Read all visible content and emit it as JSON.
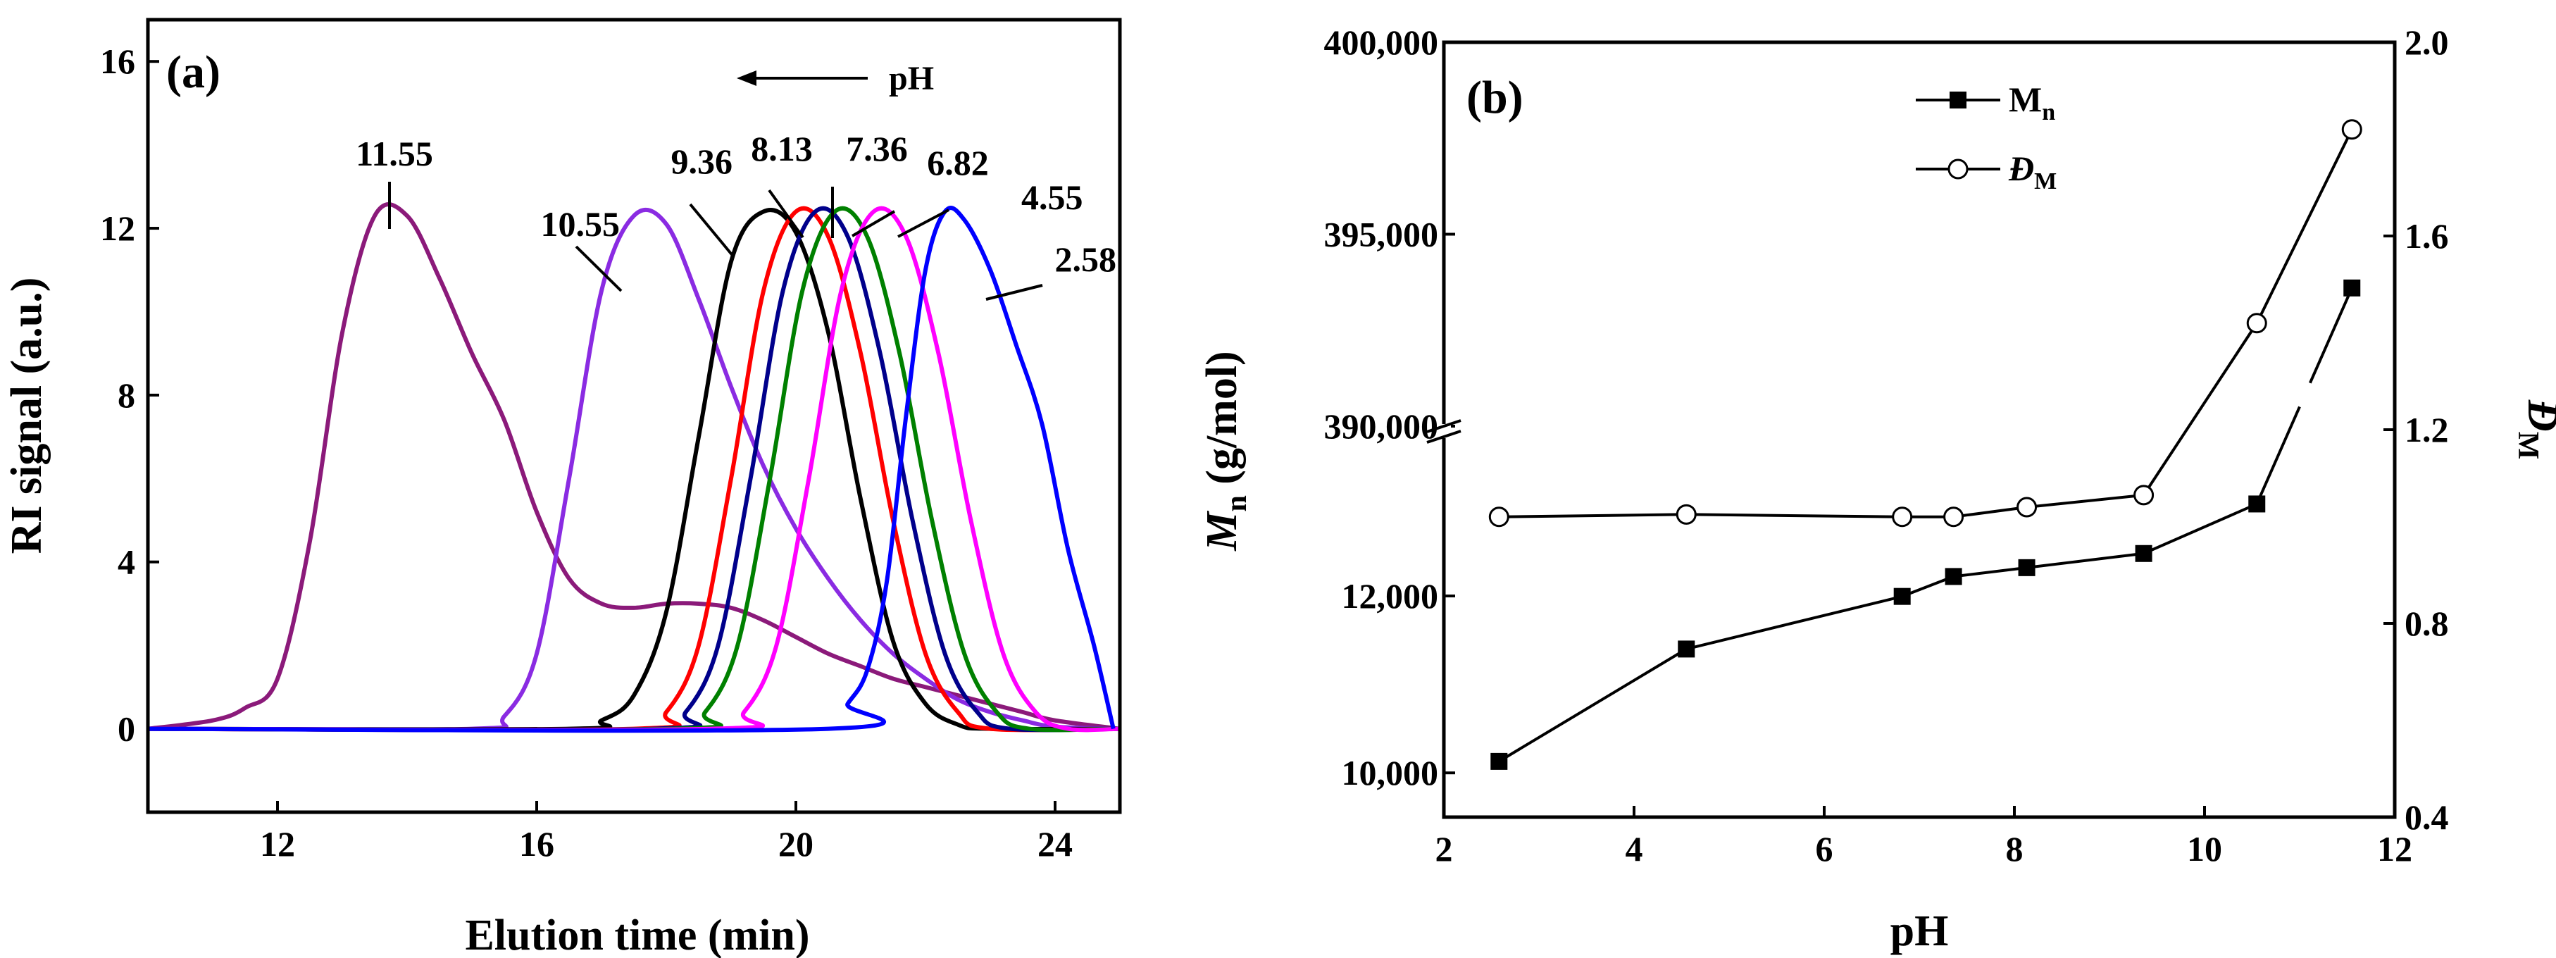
{
  "chart_data": [
    {
      "panel_label": "(a)",
      "type": "line",
      "title": "",
      "xlabel": "Elution time (min)",
      "ylabel": "RI signal (a.u.)",
      "xlim": [
        10,
        25
      ],
      "ylim": [
        -2,
        17
      ],
      "xticks": [
        12,
        16,
        20,
        24
      ],
      "yticks": [
        0,
        4,
        8,
        12,
        16
      ],
      "arrow_label": "pH",
      "series": [
        {
          "name": "11.55",
          "color": "#8b1a7a",
          "x": [
            10,
            11,
            11.5,
            12,
            12.5,
            13,
            13.5,
            14,
            14.5,
            15,
            15.5,
            16,
            16.5,
            17,
            17.5,
            18,
            18.5,
            19,
            19.5,
            20,
            20.5,
            21,
            21.5,
            22,
            22.5,
            23,
            23.5,
            24,
            25
          ],
          "y": [
            0,
            0.2,
            0.5,
            1.2,
            4.5,
            9.5,
            12.3,
            12.3,
            10.8,
            9.0,
            7.4,
            5.2,
            3.6,
            3.0,
            2.9,
            3.0,
            3.0,
            2.9,
            2.6,
            2.2,
            1.8,
            1.5,
            1.2,
            1.0,
            0.8,
            0.6,
            0.4,
            0.2,
            0
          ]
        },
        {
          "name": "10.55",
          "color": "#8a2be2",
          "x": [
            10,
            15,
            15.5,
            16,
            16.5,
            17,
            17.5,
            18,
            18.5,
            19,
            19.5,
            20,
            20.5,
            21,
            21.5,
            22,
            22.5,
            23,
            23.5,
            24,
            25
          ],
          "y": [
            0,
            0,
            0.3,
            1.8,
            6.0,
            10.5,
            12.3,
            12.1,
            10.3,
            8.2,
            6.3,
            4.8,
            3.6,
            2.6,
            1.8,
            1.2,
            0.7,
            0.4,
            0.2,
            0.05,
            0
          ]
        },
        {
          "name": "9.36",
          "color": "#000000",
          "x": [
            10,
            16.5,
            17,
            17.5,
            18,
            18.5,
            19,
            19.5,
            20,
            20.5,
            21,
            21.5,
            22,
            22.5,
            23,
            25
          ],
          "y": [
            0,
            0,
            0.2,
            0.8,
            2.8,
            7.0,
            11.2,
            12.4,
            11.9,
            9.5,
            5.5,
            2.1,
            0.6,
            0.1,
            0,
            0
          ]
        },
        {
          "name": "8.13",
          "color": "#ff0000",
          "x": [
            10,
            17.5,
            18,
            18.5,
            19,
            19.5,
            20,
            20.5,
            21,
            21.5,
            22,
            22.5,
            23,
            25
          ],
          "y": [
            0,
            0,
            0.4,
            2.0,
            6.0,
            10.5,
            12.4,
            11.8,
            9.0,
            5.0,
            1.8,
            0.4,
            0,
            0
          ]
        },
        {
          "name": "7.36",
          "color": "#00008b",
          "x": [
            10,
            17.8,
            18.3,
            18.8,
            19.3,
            19.8,
            20.3,
            20.8,
            21.3,
            21.8,
            22.3,
            22.8,
            23.3,
            25
          ],
          "y": [
            0,
            0,
            0.4,
            2.0,
            6.0,
            10.5,
            12.4,
            11.8,
            9.0,
            5.0,
            1.8,
            0.4,
            0,
            0
          ]
        },
        {
          "name": "6.82",
          "color": "#008000",
          "x": [
            10,
            18.1,
            18.6,
            19.1,
            19.6,
            20.1,
            20.6,
            21.1,
            21.6,
            22.1,
            22.6,
            23.1,
            23.6,
            25
          ],
          "y": [
            0,
            0,
            0.4,
            2.0,
            6.0,
            10.5,
            12.4,
            11.8,
            9.0,
            5.0,
            1.8,
            0.4,
            0,
            0
          ]
        },
        {
          "name": "4.55",
          "color": "#ff00ff",
          "x": [
            10,
            18.7,
            19.2,
            19.7,
            20.2,
            20.7,
            21.2,
            21.7,
            22.2,
            22.7,
            23.2,
            23.7,
            24.2,
            25
          ],
          "y": [
            0,
            0,
            0.4,
            2.0,
            6.0,
            10.5,
            12.4,
            11.8,
            9.0,
            5.0,
            1.8,
            0.4,
            0,
            0
          ]
        },
        {
          "name": "2.58",
          "color": "#0000ff",
          "x": [
            10,
            20.5,
            20.8,
            21.1,
            21.4,
            21.7,
            22,
            22.3,
            22.6,
            23,
            23.4,
            23.8,
            24.2,
            24.6,
            24.9
          ],
          "y": [
            0,
            0,
            0.6,
            1.4,
            3.5,
            7.5,
            11.0,
            12.4,
            12.2,
            11.0,
            9.2,
            7.3,
            4.3,
            2.0,
            0
          ]
        }
      ]
    },
    {
      "panel_label": "(b)",
      "type": "line",
      "title": "",
      "xlabel": "pH",
      "ylabel_left": "M",
      "ylabel_left_sub": "n",
      "ylabel_left_unit": " (g/mol)",
      "ylabel_right": "Đ",
      "ylabel_right_sub": "M",
      "xlim": [
        2,
        12
      ],
      "xticks": [
        2,
        4,
        6,
        8,
        10,
        12
      ],
      "left_axis_ticks": [
        "400,000",
        "395,000",
        "390,000",
        "12,000",
        "10,000"
      ],
      "left_axis": {
        "type": "broken",
        "lower_range": [
          9500,
          13800
        ],
        "upper_range": [
          390000,
          400000
        ]
      },
      "right_ylim": [
        0.4,
        2.0
      ],
      "right_yticks": [
        "0.4",
        "0.8",
        "1.2",
        "1.6",
        "2.0"
      ],
      "series": [
        {
          "name": "M",
          "name_sub": "n",
          "marker": "filled-square",
          "axis": "left",
          "x": [
            2.58,
            4.55,
            6.82,
            7.36,
            8.13,
            9.36,
            10.55,
            11.55
          ],
          "y": [
            10130,
            11400,
            11995,
            12220,
            12320,
            12480,
            13040,
            393600
          ]
        },
        {
          "name": "Đ",
          "name_sub": "M",
          "marker": "open-circle",
          "axis": "right",
          "x": [
            2.58,
            4.55,
            6.82,
            7.36,
            8.13,
            9.36,
            10.55,
            11.55
          ],
          "y": [
            1.02,
            1.025,
            1.02,
            1.02,
            1.04,
            1.065,
            1.42,
            1.82
          ]
        }
      ]
    }
  ]
}
